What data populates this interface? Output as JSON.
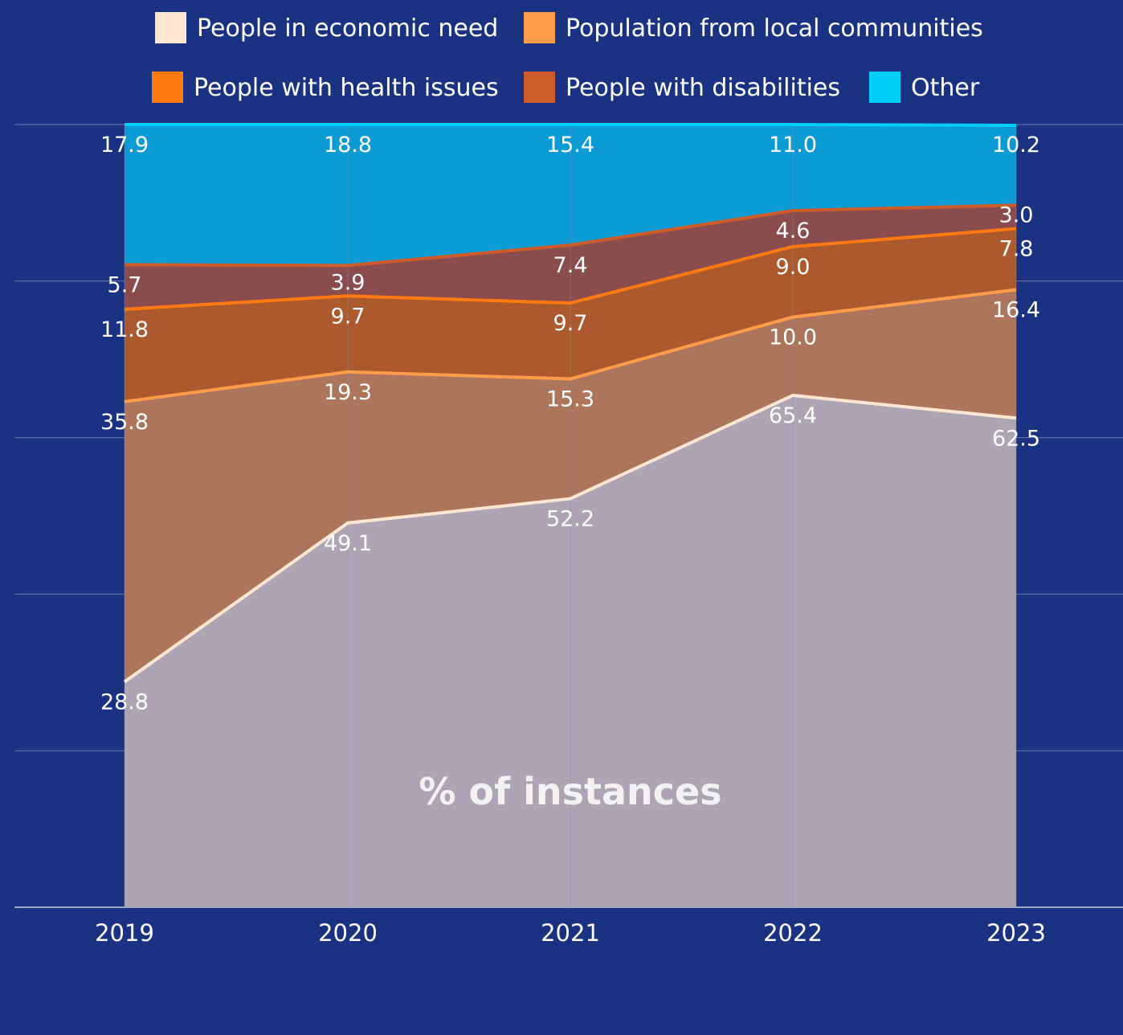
{
  "chart_data": {
    "type": "area",
    "stacked": true,
    "x": [
      "2019",
      "2020",
      "2021",
      "2022",
      "2023"
    ],
    "ylim": [
      0,
      100
    ],
    "grid": true,
    "legend_position": "top",
    "annotation": "% of instances",
    "series": [
      {
        "name": "People in economic need",
        "color": "#ffe6d2",
        "fill": "#ada5b4",
        "values": [
          28.8,
          49.1,
          52.2,
          65.4,
          62.5
        ]
      },
      {
        "name": "Population from local communities",
        "color": "#ff9c4a",
        "fill": "#ad755b",
        "values": [
          35.8,
          19.3,
          15.3,
          10.0,
          16.4
        ]
      },
      {
        "name": "People with health issues",
        "color": "#ff7a12",
        "fill": "#ab592d",
        "values": [
          11.8,
          9.7,
          9.7,
          9.0,
          7.8
        ]
      },
      {
        "name": "People with disabilities",
        "color": "#cd5c2a",
        "fill": "#8a4c4c",
        "values": [
          5.7,
          3.9,
          7.4,
          4.6,
          3.0
        ]
      },
      {
        "name": "Other",
        "color": "#00cff5",
        "fill": "#0b9bd4",
        "values": [
          17.9,
          18.8,
          15.4,
          11.0,
          10.2
        ]
      }
    ]
  }
}
